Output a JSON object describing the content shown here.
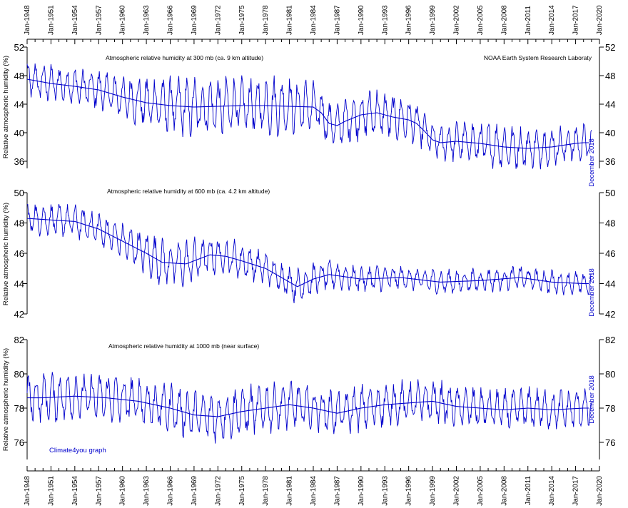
{
  "chart_data": [
    {
      "type": "line",
      "title": "Atmospheric relative humidity at 300 mb (ca. 9 km altitude)",
      "source": "NOAA Earth System Research Laboraty",
      "ylabel": "Relative atmospheric humidity (%)",
      "ylim": [
        35,
        52
      ],
      "yticks": [
        36,
        40,
        44,
        48,
        52
      ],
      "end_label": "December 2018",
      "series": [
        {
          "color": "#0000cc",
          "x": [
            1948,
            1951,
            1954,
            1957,
            1960,
            1963,
            1966,
            1969,
            1972,
            1975,
            1978,
            1981,
            1984,
            1985,
            1986,
            1987,
            1988,
            1990,
            1992,
            1994,
            1996,
            1997,
            1998,
            1999,
            2000,
            2002,
            2005,
            2008,
            2011,
            2014,
            2017,
            2018
          ],
          "trend": [
            47.5,
            46.9,
            46.5,
            46.0,
            45.0,
            44.2,
            43.8,
            43.6,
            43.7,
            43.8,
            43.8,
            43.7,
            43.6,
            42.8,
            41.3,
            41.0,
            41.6,
            42.5,
            42.8,
            42.2,
            41.8,
            41.3,
            40.2,
            39.0,
            38.6,
            38.8,
            38.5,
            38.0,
            37.8,
            38.0,
            38.5,
            38.6
          ],
          "amplitude": [
            2.0,
            2.0,
            2.0,
            2.0,
            2.4,
            2.8,
            3.1,
            3.2,
            3.1,
            3.1,
            3.2,
            3.0,
            2.8,
            2.6,
            2.2,
            2.2,
            2.4,
            2.6,
            2.6,
            2.4,
            2.4,
            2.2,
            2.0,
            1.8,
            1.9,
            2.1,
            2.3,
            2.4,
            2.2,
            2.1,
            2.1,
            2.0
          ]
        }
      ]
    },
    {
      "type": "line",
      "title": "Atmospheric relative humidity at 600 mb (ca. 4.2 km altitude)",
      "ylabel": "Relative atmospheric humidity (%)",
      "ylim": [
        42,
        50
      ],
      "yticks": [
        42,
        44,
        46,
        48,
        50
      ],
      "end_label": "December 2018",
      "series": [
        {
          "color": "#0000cc",
          "x": [
            1948,
            1951,
            1954,
            1957,
            1960,
            1963,
            1965,
            1968,
            1971,
            1973,
            1975,
            1978,
            1980,
            1982,
            1984,
            1986,
            1990,
            1995,
            2000,
            2005,
            2010,
            2014,
            2018
          ],
          "trend": [
            48.3,
            48.2,
            48.1,
            47.6,
            46.8,
            46.0,
            45.4,
            45.3,
            45.9,
            45.8,
            45.5,
            45.0,
            44.4,
            43.8,
            44.3,
            44.6,
            44.3,
            44.4,
            44.1,
            44.2,
            44.4,
            44.1,
            44.0
          ],
          "amplitude": [
            0.8,
            0.8,
            0.8,
            0.9,
            0.9,
            1.1,
            1.2,
            1.2,
            1.0,
            1.0,
            0.9,
            0.8,
            0.8,
            0.9,
            0.8,
            0.7,
            0.7,
            0.6,
            0.6,
            0.6,
            0.6,
            0.6,
            0.6
          ]
        }
      ]
    },
    {
      "type": "line",
      "title": "Atmospheric relative humidity at 1000 mb (near surface)",
      "ylabel": "Relative atmospheric humidity (%)",
      "ylim": [
        75,
        82
      ],
      "yticks": [
        76,
        78,
        80,
        82
      ],
      "end_label": "December 2018",
      "series": [
        {
          "color": "#0000cc",
          "x": [
            1948,
            1950,
            1954,
            1958,
            1962,
            1966,
            1969,
            1972,
            1975,
            1978,
            1981,
            1984,
            1987,
            1990,
            1993,
            1996,
            1999,
            2002,
            2005,
            2008,
            2011,
            2014,
            2018
          ],
          "trend": [
            78.6,
            78.6,
            78.7,
            78.6,
            78.4,
            78.0,
            77.6,
            77.5,
            77.8,
            78.0,
            78.2,
            78.0,
            77.7,
            78.0,
            78.2,
            78.3,
            78.4,
            78.1,
            78.0,
            77.9,
            78.0,
            77.9,
            78.0
          ],
          "amplitude": [
            1.1,
            1.1,
            1.1,
            1.1,
            1.1,
            1.1,
            1.1,
            1.1,
            1.1,
            1.1,
            1.1,
            1.0,
            1.0,
            1.0,
            1.0,
            1.0,
            1.0,
            0.9,
            0.9,
            0.9,
            0.9,
            0.9,
            0.9
          ]
        }
      ]
    }
  ],
  "xaxis": {
    "xlim": [
      1948,
      2020
    ],
    "tick_labels": [
      "Jan-1948",
      "Jan-1951",
      "Jan-1954",
      "Jan-1957",
      "Jan-1960",
      "Jan-1963",
      "Jan-1966",
      "Jan-1969",
      "Jan-1972",
      "Jan-1975",
      "Jan-1978",
      "Jan-1981",
      "Jan-1984",
      "Jan-1987",
      "Jan-1990",
      "Jan-1993",
      "Jan-1996",
      "Jan-1999",
      "Jan-2002",
      "Jan-2005",
      "Jan-2008",
      "Jan-2011",
      "Jan-2014",
      "Jan-2017",
      "Jan-2020"
    ],
    "tick_years": [
      1948,
      1951,
      1954,
      1957,
      1960,
      1963,
      1966,
      1969,
      1972,
      1975,
      1978,
      1981,
      1984,
      1987,
      1990,
      1993,
      1996,
      1999,
      2002,
      2005,
      2008,
      2011,
      2014,
      2017,
      2020
    ]
  },
  "credit": "Climate4you graph",
  "colors": {
    "data": "#0000cc",
    "axis": "#000000",
    "background": "#ffffff"
  }
}
